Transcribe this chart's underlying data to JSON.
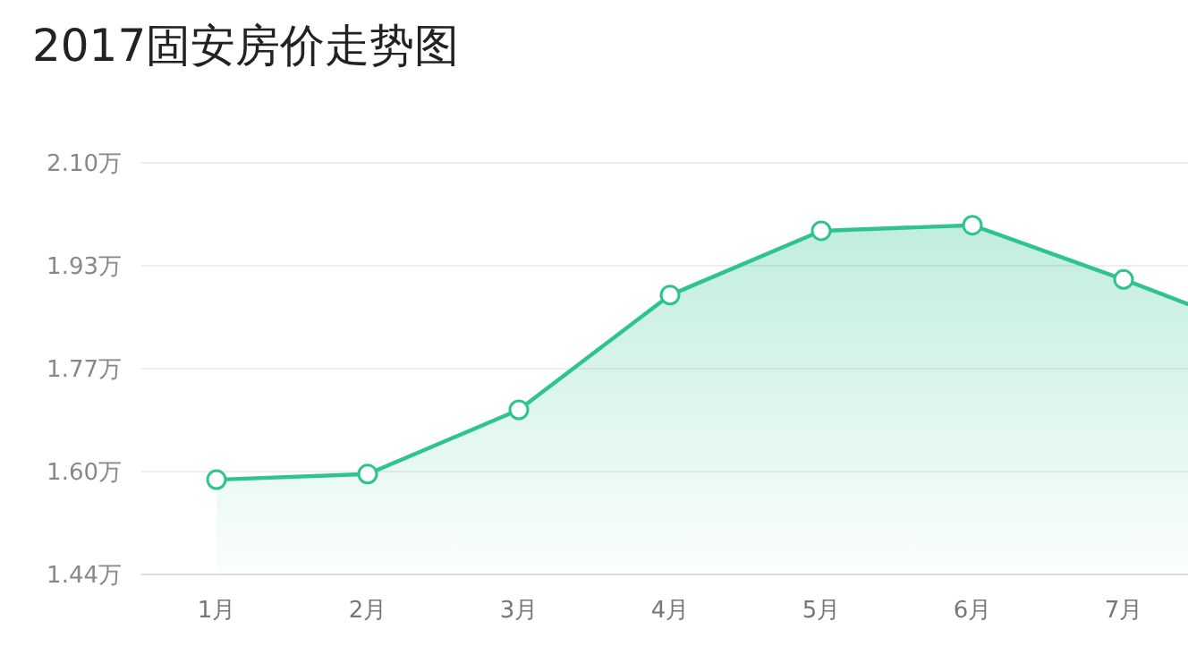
{
  "chart_data": {
    "type": "area",
    "title": "2017固安房价走势图",
    "categories": [
      "1月",
      "2月",
      "3月",
      "4月",
      "5月",
      "6月",
      "7月",
      null
    ],
    "series": [
      {
        "color": "#2ec48e",
        "values": [
          1.592,
          1.601,
          1.704,
          1.888,
          1.991,
          2.0,
          1.913,
          1.82
        ]
      }
    ],
    "ylim": [
      1.44,
      2.1
    ],
    "yticks": [
      {
        "value": 1.44,
        "label": "1.44万"
      },
      {
        "value": 1.605,
        "label": "1.60万"
      },
      {
        "value": 1.77,
        "label": "1.77万"
      },
      {
        "value": 1.935,
        "label": "1.93万"
      },
      {
        "value": 2.1,
        "label": "2.10万"
      }
    ],
    "grid": "y",
    "marker": "circle"
  }
}
